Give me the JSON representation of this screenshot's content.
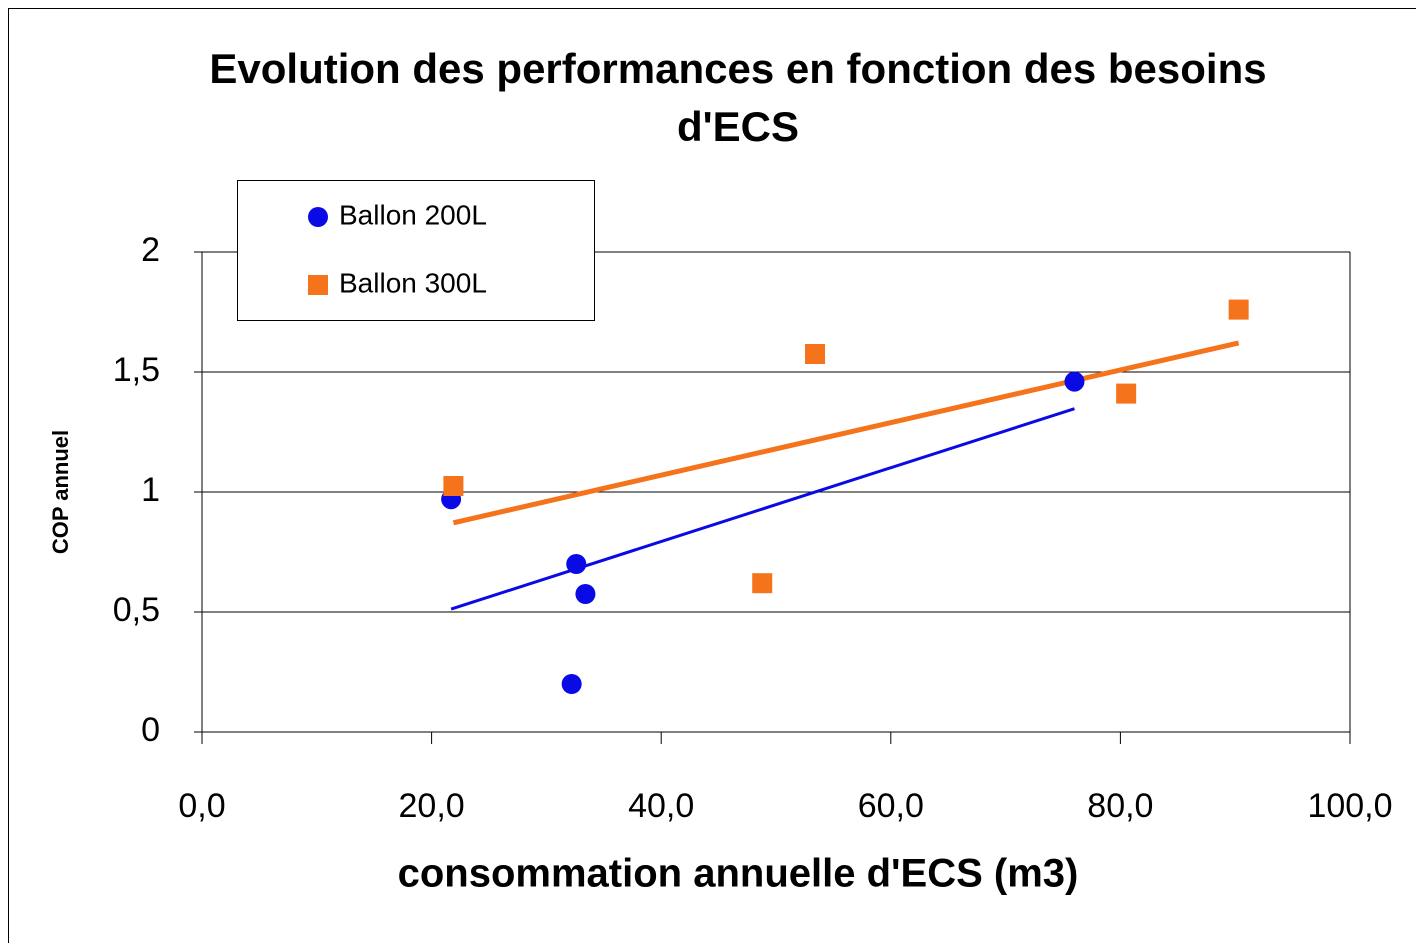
{
  "chart_data": {
    "type": "scatter",
    "title": "Evolution des performances en fonction des besoins d'ECS",
    "x_label": "consommation annuelle d'ECS (m3)",
    "y_label": "COP annuel",
    "series": [
      {
        "name": "Ballon 200L",
        "color": "#0a0ae6",
        "marker": "circle",
        "x": [
          21.7,
          32.6,
          33.4,
          32.2,
          76.0
        ],
        "values": [
          0.97,
          0.7,
          0.575,
          0.2,
          1.46
        ]
      },
      {
        "name": "Ballon 300L",
        "color": "#f5731a",
        "marker": "square",
        "x": [
          21.9,
          53.4,
          48.8,
          80.5,
          90.3
        ],
        "values": [
          1.025,
          1.575,
          0.62,
          1.41,
          1.76
        ]
      }
    ],
    "trendline": true,
    "xlim": [
      0,
      100
    ],
    "xticks": [
      {
        "value": 0,
        "label": "0,0"
      },
      {
        "value": 20,
        "label": "20,0"
      },
      {
        "value": 40,
        "label": "40,0"
      },
      {
        "value": 60,
        "label": "60,0"
      },
      {
        "value": 80,
        "label": "80,0"
      },
      {
        "value": 100,
        "label": "100,0"
      }
    ],
    "ylim": [
      0,
      2
    ],
    "yticks": [
      0,
      {
        "value": 0.5,
        "label": "0,5"
      },
      1,
      {
        "value": 1.5,
        "label": "1,5"
      },
      2
    ],
    "grid": true,
    "legend": "top-left"
  }
}
